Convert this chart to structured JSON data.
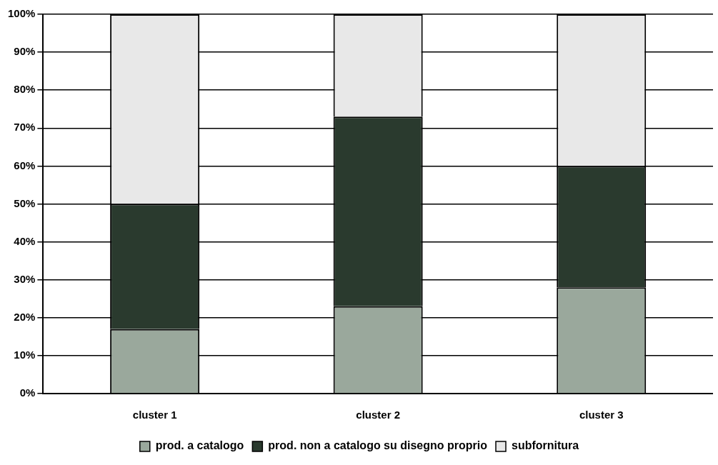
{
  "chart_data": {
    "type": "bar",
    "stacked": true,
    "categories": [
      "cluster 1",
      "cluster 2",
      "cluster 3"
    ],
    "series": [
      {
        "name": "prod. a catalogo",
        "color": "#9aa89c",
        "values": [
          17,
          23,
          28
        ]
      },
      {
        "name": "prod. non a catalogo su disegno proprio",
        "color": "#2a3a2e",
        "values": [
          33,
          50,
          32
        ]
      },
      {
        "name": "subfornitura",
        "color": "#e8e8e8",
        "values": [
          50,
          27,
          40
        ]
      }
    ],
    "ylim": [
      0,
      100
    ],
    "yticks": [
      {
        "value": 0,
        "label": "0%"
      },
      {
        "value": 10,
        "label": "10%"
      },
      {
        "value": 20,
        "label": "20%"
      },
      {
        "value": 30,
        "label": "30%"
      },
      {
        "value": 40,
        "label": "40%"
      },
      {
        "value": 50,
        "label": "50%"
      },
      {
        "value": 60,
        "label": "60%"
      },
      {
        "value": 70,
        "label": "70%"
      },
      {
        "value": 80,
        "label": "80%"
      },
      {
        "value": 90,
        "label": "90%"
      },
      {
        "value": 100,
        "label": "100%"
      }
    ],
    "grid": "y",
    "legend": "bottom"
  }
}
